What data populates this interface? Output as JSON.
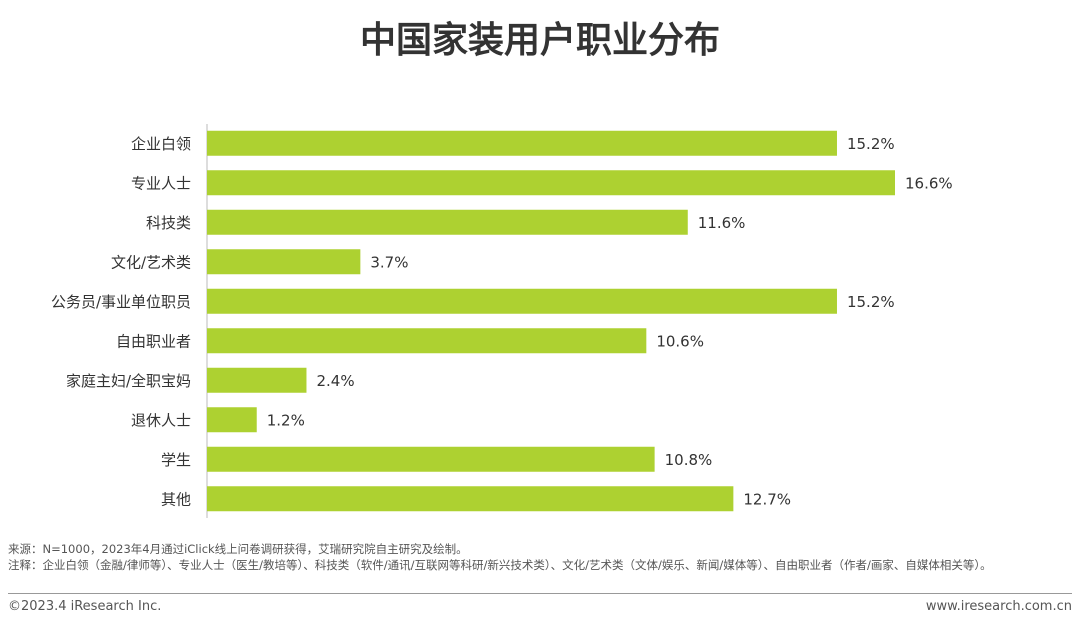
{
  "chart_data": {
    "type": "hbar",
    "title": "中国家装用户职业分布",
    "categories": [
      "企业白领",
      "专业人士",
      "科技类",
      "文化/艺术类",
      "公务员/事业单位职员",
      "自由职业者",
      "家庭主妇/全职宝妈",
      "退休人士",
      "学生",
      "其他"
    ],
    "values": [
      15.2,
      16.6,
      11.6,
      3.7,
      15.2,
      10.6,
      2.4,
      1.2,
      10.8,
      12.7
    ],
    "value_labels": [
      "15.2%",
      "16.6%",
      "11.6%",
      "3.7%",
      "15.2%",
      "10.6%",
      "2.4%",
      "1.2%",
      "10.8%",
      "12.7%"
    ],
    "color": "#add131"
  },
  "source": "来源：N=1000，2023年4月通过iClick线上问卷调研获得，艾瑞研究院自主研究及绘制。",
  "note": "注释：企业白领（金融/律师等）、专业人士（医生/教培等）、科技类（软件/通讯/互联网等科研/新兴技术类）、文化/艺术类（文体/娱乐、新闻/媒体等）、自由职业者（作者/画家、自媒体相关等）。",
  "copyright": "©2023.4 iResearch Inc.",
  "website": "www.iresearch.com.cn"
}
